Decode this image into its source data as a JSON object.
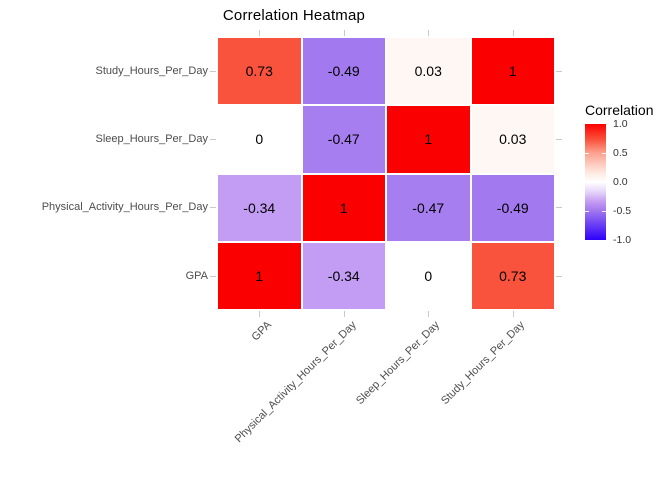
{
  "chart_data": {
    "type": "heatmap",
    "title": "Correlation Heatmap",
    "x_categories_left_to_right": [
      "GPA",
      "Physical_Activity_Hours_Per_Day",
      "Sleep_Hours_Per_Day",
      "Study_Hours_Per_Day"
    ],
    "y_categories_top_to_bottom": [
      "Study_Hours_Per_Day",
      "Sleep_Hours_Per_Day",
      "Physical_Activity_Hours_Per_Day",
      "GPA"
    ],
    "rows": [
      {
        "row": "Study_Hours_Per_Day",
        "values": [
          0.73,
          -0.49,
          0.03,
          1
        ],
        "labels": [
          "0.73",
          "-0.49",
          "0.03",
          "1"
        ],
        "colors": [
          "#f9523d",
          "#a379ef",
          "#fff7f3",
          "#fb0000"
        ]
      },
      {
        "row": "Sleep_Hours_Per_Day",
        "values": [
          0,
          -0.47,
          1,
          0.03
        ],
        "labels": [
          "0",
          "-0.47",
          "1",
          "0.03"
        ],
        "colors": [
          "#ffffff",
          "#a77ef0",
          "#fb0000",
          "#fff7f3"
        ]
      },
      {
        "row": "Physical_Activity_Hours_Per_Day",
        "values": [
          -0.34,
          1,
          -0.47,
          -0.49
        ],
        "labels": [
          "-0.34",
          "1",
          "-0.47",
          "-0.49"
        ],
        "colors": [
          "#c39cf3",
          "#fb0000",
          "#a77ef0",
          "#a379ef"
        ]
      },
      {
        "row": "GPA",
        "values": [
          1,
          -0.34,
          0,
          0.73
        ],
        "labels": [
          "1",
          "-0.34",
          "0",
          "0.73"
        ],
        "colors": [
          "#fb0000",
          "#c39cf3",
          "#ffffff",
          "#f9523d"
        ]
      }
    ],
    "legend": {
      "title": "Correlation",
      "tick_labels": [
        "1.0",
        "0.5",
        "0.0",
        "-0.5",
        "-1.0"
      ],
      "range": [
        -1.0,
        1.0
      ],
      "high_color": "#ff0000",
      "mid_color": "#ffffff",
      "low_color": "#2d00fb",
      "position": "right"
    },
    "grid_on": false
  }
}
